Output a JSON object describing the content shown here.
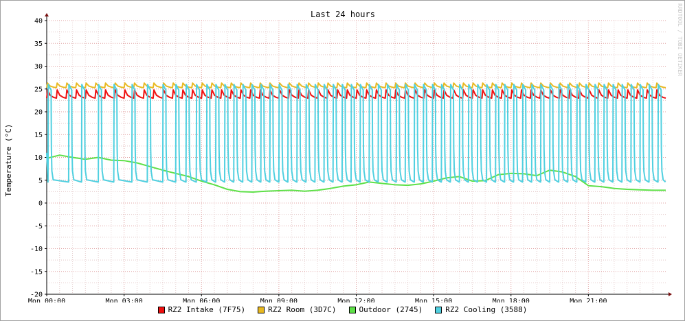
{
  "watermark": "RRDTOOL / TOBI OETIKER",
  "chart_data": {
    "type": "line",
    "title": "Last 24 hours",
    "ylabel": "Temperature (°C)",
    "xlabel": "",
    "ylim": [
      -20,
      40
    ],
    "xlim_hours": [
      0,
      24
    ],
    "y_ticks": [
      40,
      35,
      30,
      25,
      20,
      15,
      10,
      5,
      0,
      -5,
      -10,
      -15,
      -20
    ],
    "x_tick_labels": [
      "Mon 00:00",
      "Mon 03:00",
      "Mon 06:00",
      "Mon 09:00",
      "Mon 12:00",
      "Mon 15:00",
      "Mon 18:00",
      "Mon 21:00"
    ],
    "x_tick_hours": [
      0,
      3,
      6,
      9,
      12,
      15,
      18,
      21
    ],
    "grid": true,
    "legend_position": "bottom",
    "series": [
      {
        "name": "RZ2 Intake (7F75)",
        "color": "#ee1010",
        "pattern": "sawtooth",
        "cycles": 64,
        "low": 23.0,
        "high": 24.8
      },
      {
        "name": "RZ2 Room (3D7C)",
        "color": "#e8b820",
        "pattern": "sawtooth",
        "cycles": 64,
        "low": 25.3,
        "high": 26.3
      },
      {
        "name": "Outdoor (2745)",
        "color": "#5ee048",
        "pattern": "smooth",
        "x": [
          0,
          0.5,
          1,
          1.5,
          2,
          2.5,
          3,
          3.5,
          4,
          4.5,
          5,
          5.5,
          6,
          6.5,
          7,
          7.5,
          8,
          8.5,
          9,
          9.5,
          10,
          10.5,
          11,
          11.5,
          12,
          12.5,
          13,
          13.5,
          14,
          14.5,
          15,
          15.5,
          16,
          16.5,
          17,
          17.5,
          18,
          18.5,
          19,
          19.5,
          20,
          20.5,
          21,
          21.5,
          22,
          22.5,
          23,
          23.5,
          24
        ],
        "y": [
          9.8,
          10.5,
          10.0,
          9.6,
          10.0,
          9.4,
          9.3,
          8.8,
          8.0,
          7.2,
          6.5,
          5.8,
          4.8,
          4.0,
          3.0,
          2.5,
          2.4,
          2.6,
          2.7,
          2.8,
          2.6,
          2.8,
          3.2,
          3.7,
          4.0,
          4.6,
          4.3,
          4.0,
          3.9,
          4.2,
          4.8,
          5.5,
          5.8,
          4.8,
          4.9,
          6.2,
          6.5,
          6.4,
          6.0,
          7.2,
          6.8,
          5.8,
          3.8,
          3.6,
          3.2,
          3.0,
          2.9,
          2.8,
          2.8
        ]
      },
      {
        "name": "RZ2 Cooling (3588)",
        "color": "#50d0e0",
        "pattern": "pulses",
        "x_start": [
          0.05,
          0.85,
          1.35,
          2.0,
          2.6,
          3.3,
          3.9,
          4.5,
          5.0,
          5.4,
          5.8,
          6.2,
          6.55,
          6.9,
          7.25,
          7.6,
          7.95,
          8.3,
          8.65,
          9.0,
          9.35,
          9.7,
          10.05,
          10.4,
          10.75,
          11.1,
          11.45,
          11.8,
          12.15,
          12.5,
          12.85,
          13.2,
          13.55,
          13.9,
          14.25,
          14.6,
          14.95,
          15.3,
          15.65,
          16.0,
          16.35,
          16.7,
          17.05,
          17.4,
          17.75,
          18.1,
          18.45,
          18.8,
          19.15,
          19.5,
          19.85,
          20.2,
          20.55,
          20.9,
          21.25,
          21.6,
          21.95,
          22.3,
          22.65,
          23.0,
          23.35,
          23.7
        ],
        "peak": 26.0,
        "base": 4.6
      }
    ]
  }
}
